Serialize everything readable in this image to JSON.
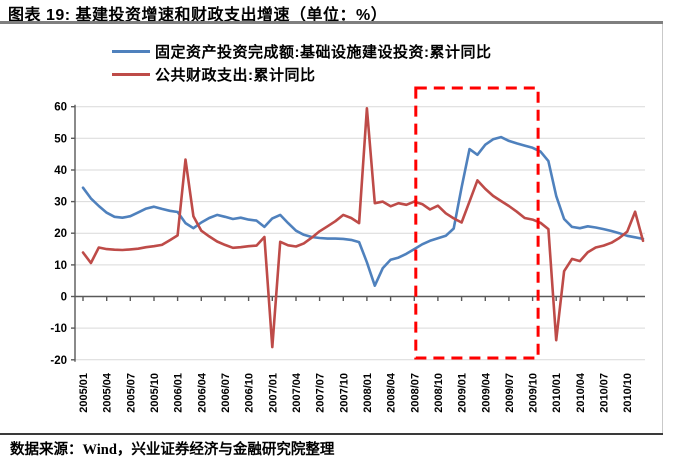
{
  "header": {
    "title": "图表 19: 基建投资增速和财政支出增速（单位：%）"
  },
  "legend": {
    "items": [
      {
        "label": "固定资产投资完成额:基础设施建设投资:累计同比",
        "color": "#4F81BD"
      },
      {
        "label": "公共财政支出:累计同比",
        "color": "#BE4B48"
      }
    ]
  },
  "footer": {
    "text": "数据来源：Wind，兴业证券经济与金融研究院整理"
  },
  "chart_data": {
    "type": "line",
    "x_monthly_start": "2005/01",
    "x_monthly_end": "2010/12",
    "x_tick_labels": [
      "2005/01",
      "2005/04",
      "2005/07",
      "2005/10",
      "2006/01",
      "2006/04",
      "2006/07",
      "2006/10",
      "2007/01",
      "2007/04",
      "2007/07",
      "2007/10",
      "2008/01",
      "2008/04",
      "2008/07",
      "2008/10",
      "2009/01",
      "2009/04",
      "2009/07",
      "2009/10",
      "2010/01",
      "2010/04",
      "2010/07",
      "2010/10"
    ],
    "ylim": [
      -20,
      60
    ],
    "y_ticks": [
      -20,
      -10,
      0,
      10,
      20,
      30,
      40,
      50,
      60
    ],
    "grid": "horizontal",
    "legend_position": "top",
    "series": [
      {
        "name": "固定资产投资完成额:基础设施建设投资:累计同比",
        "color": "#4F81BD",
        "values": [
          34.4,
          31.0,
          28.6,
          26.5,
          25.2,
          24.9,
          25.4,
          26.6,
          27.8,
          28.4,
          27.7,
          27.1,
          26.7,
          23.2,
          21.6,
          23.4,
          24.8,
          25.8,
          25.2,
          24.5,
          24.9,
          24.3,
          24.0,
          22.0,
          24.7,
          25.8,
          23.2,
          20.8,
          19.5,
          18.8,
          18.5,
          18.3,
          18.3,
          18.2,
          17.9,
          17.2,
          10.8,
          3.4,
          8.9,
          11.6,
          12.3,
          13.5,
          15.0,
          16.5,
          17.6,
          18.4,
          19.2,
          21.5,
          34.5,
          46.6,
          44.8,
          48.0,
          49.7,
          50.4,
          49.2,
          48.4,
          47.7,
          47.0,
          45.8,
          42.8,
          31.8,
          24.5,
          22.0,
          21.6,
          22.2,
          21.8,
          21.3,
          20.7,
          20.0,
          19.2,
          18.7,
          18.2
        ]
      },
      {
        "name": "公共财政支出:累计同比",
        "color": "#BE4B48",
        "values": [
          13.9,
          10.6,
          15.5,
          15.0,
          14.8,
          14.7,
          14.9,
          15.1,
          15.6,
          15.9,
          16.3,
          17.8,
          19.3,
          43.3,
          25.4,
          20.8,
          19.0,
          17.4,
          16.3,
          15.4,
          15.6,
          15.9,
          16.1,
          18.8,
          -16.0,
          17.3,
          16.2,
          15.8,
          16.8,
          18.6,
          20.6,
          22.2,
          23.8,
          25.8,
          24.8,
          23.2,
          59.5,
          29.5,
          30.0,
          28.5,
          29.5,
          29.0,
          30.0,
          29.2,
          27.5,
          28.7,
          26.3,
          24.7,
          23.4,
          30.0,
          36.7,
          34.0,
          31.8,
          30.2,
          28.6,
          26.8,
          24.8,
          24.3,
          23.3,
          21.3,
          -13.8,
          8.0,
          11.9,
          11.2,
          14.0,
          15.5,
          16.1,
          17.0,
          18.5,
          20.5,
          26.8,
          17.6
        ]
      }
    ],
    "highlight_region": {
      "from": "2008/07",
      "to": "2009/11",
      "from_index": 42.2,
      "to_index": 57.7,
      "color": "#FF0000",
      "style": "dashed-rectangle"
    }
  }
}
